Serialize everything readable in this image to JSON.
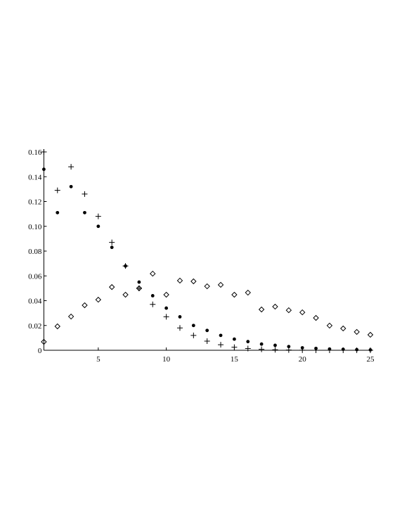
{
  "chart_data": {
    "type": "scatter",
    "x": [
      1,
      2,
      3,
      4,
      5,
      6,
      7,
      8,
      9,
      10,
      11,
      12,
      13,
      14,
      15,
      16,
      17,
      18,
      19,
      20,
      21,
      22,
      23,
      24,
      25
    ],
    "series": [
      {
        "marker": "dot",
        "color": "#000000",
        "values": [
          0.146,
          0.111,
          0.132,
          0.111,
          0.1,
          0.083,
          0.068,
          0.055,
          0.044,
          0.034,
          0.027,
          0.02,
          0.016,
          0.012,
          0.009,
          0.007,
          0.005,
          0.004,
          0.003,
          0.002,
          0.0015,
          0.001,
          0.0008,
          0.0005,
          0.0003
        ]
      },
      {
        "marker": "plus",
        "color": "#000000",
        "values": [
          0.16,
          0.129,
          0.148,
          0.126,
          0.108,
          0.087,
          0.068,
          0.05,
          0.037,
          0.027,
          0.018,
          0.012,
          0.0074,
          0.0045,
          0.0025,
          0.0014,
          0.0008,
          0.0004,
          0.0002,
          0.0001,
          0,
          0,
          0,
          0,
          0
        ]
      },
      {
        "marker": "diamond",
        "color": "#000000",
        "values": [
          0.0068,
          0.0193,
          0.0272,
          0.0363,
          0.0408,
          0.051,
          0.0448,
          0.05,
          0.0618,
          0.0448,
          0.0562,
          0.0556,
          0.0516,
          0.0528,
          0.0448,
          0.0465,
          0.0329,
          0.0352,
          0.0323,
          0.0306,
          0.0261,
          0.0199,
          0.0176,
          0.0148,
          0.0125
        ]
      }
    ],
    "xlim": [
      1,
      25
    ],
    "xticks": [
      5,
      10,
      15,
      20,
      25
    ],
    "ylim": [
      0,
      0.16
    ],
    "yticks": [
      0,
      0.02,
      0.04,
      0.06,
      0.08,
      {
        "value": 0.1,
        "label": "0.10"
      },
      0.12,
      0.14,
      0.16
    ]
  }
}
